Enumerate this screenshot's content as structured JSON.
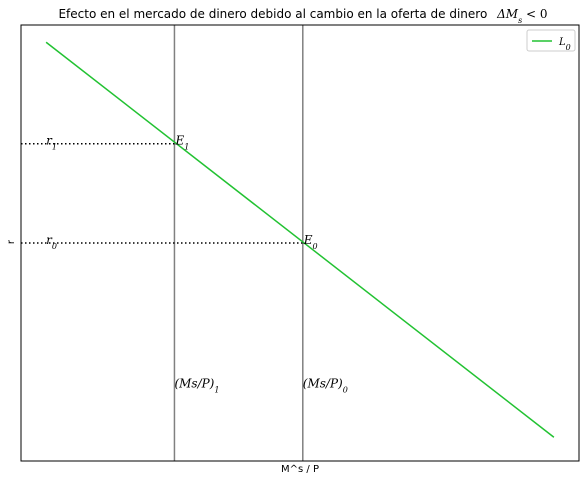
{
  "chart_data": {
    "type": "line",
    "title": "Efecto en el mercado de dinero debido al cambio en la oferta de dinero",
    "title_math": "ΔM",
    "title_math_sub": "s",
    "title_math_tail": " < 0",
    "xlabel": "M^s / P",
    "ylabel": "r",
    "xlim": [
      0,
      100
    ],
    "ylim": [
      -1,
      100
    ],
    "xticks": [],
    "yticks": [],
    "grid": false,
    "legend_position": "top-right",
    "series": [
      {
        "name": "L₀",
        "legend_main": "L",
        "legend_sub": "0",
        "color": "#22c232",
        "x": [
          4.5,
          95.5
        ],
        "y": [
          96,
          4.5
        ]
      }
    ],
    "vlines": [
      {
        "x": 27.5,
        "color": "#808080",
        "label_main": "(Ms/P)",
        "label_sub": "1"
      },
      {
        "x": 50.5,
        "color": "#808080",
        "label_main": "(Ms/P)",
        "label_sub": "0"
      }
    ],
    "hlines": [
      {
        "y": 72.5,
        "x_end": 27.5,
        "style": "dotted",
        "label_main": "r",
        "label_sub": "1"
      },
      {
        "y": 49.5,
        "x_end": 50.5,
        "style": "dotted",
        "label_main": "r",
        "label_sub": "0"
      }
    ],
    "points": [
      {
        "x": 27.5,
        "y": 72.5,
        "label_main": "E",
        "label_sub": "1"
      },
      {
        "x": 50.5,
        "y": 49.5,
        "label_main": "E",
        "label_sub": "0"
      }
    ]
  }
}
